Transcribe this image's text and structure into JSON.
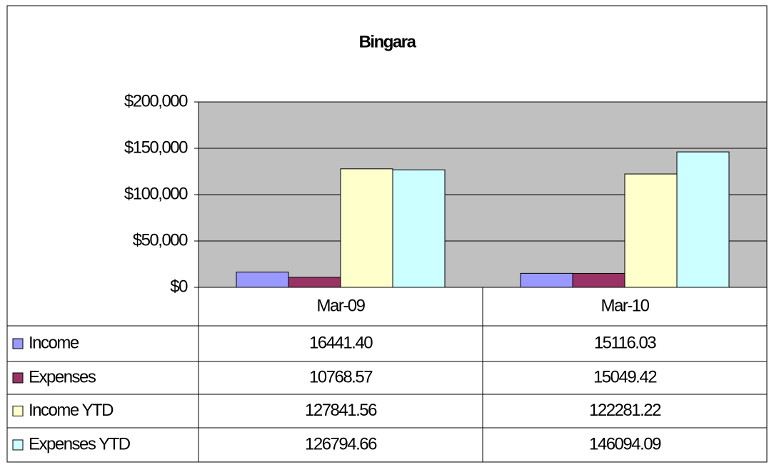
{
  "chart_data": {
    "type": "bar",
    "title": "Bingara",
    "categories": [
      "Mar-09",
      "Mar-10"
    ],
    "series": [
      {
        "name": "Income",
        "color": "#9999ff",
        "values": [
          16441.4,
          15116.03
        ],
        "value_labels": [
          "16441.40",
          "15116.03"
        ]
      },
      {
        "name": "Expenses",
        "color": "#993366",
        "values": [
          10768.57,
          15049.42
        ],
        "value_labels": [
          "10768.57",
          "15049.42"
        ]
      },
      {
        "name": "Income YTD",
        "color": "#ffffcc",
        "values": [
          127841.56,
          122281.22
        ],
        "value_labels": [
          "127841.56",
          "122281.22"
        ]
      },
      {
        "name": "Expenses YTD",
        "color": "#ccffff",
        "values": [
          126794.66,
          146094.09
        ],
        "value_labels": [
          "126794.66",
          "146094.09"
        ]
      }
    ],
    "ylim": [
      0,
      200000
    ],
    "yticks": [
      {
        "value": 0,
        "label": "$0"
      },
      {
        "value": 50000,
        "label": "$50,000"
      },
      {
        "value": 100000,
        "label": "$100,000"
      },
      {
        "value": 150000,
        "label": "$150,000"
      },
      {
        "value": 200000,
        "label": "$200,000"
      }
    ],
    "grid": true,
    "plot_background": "#c0c0c0"
  }
}
